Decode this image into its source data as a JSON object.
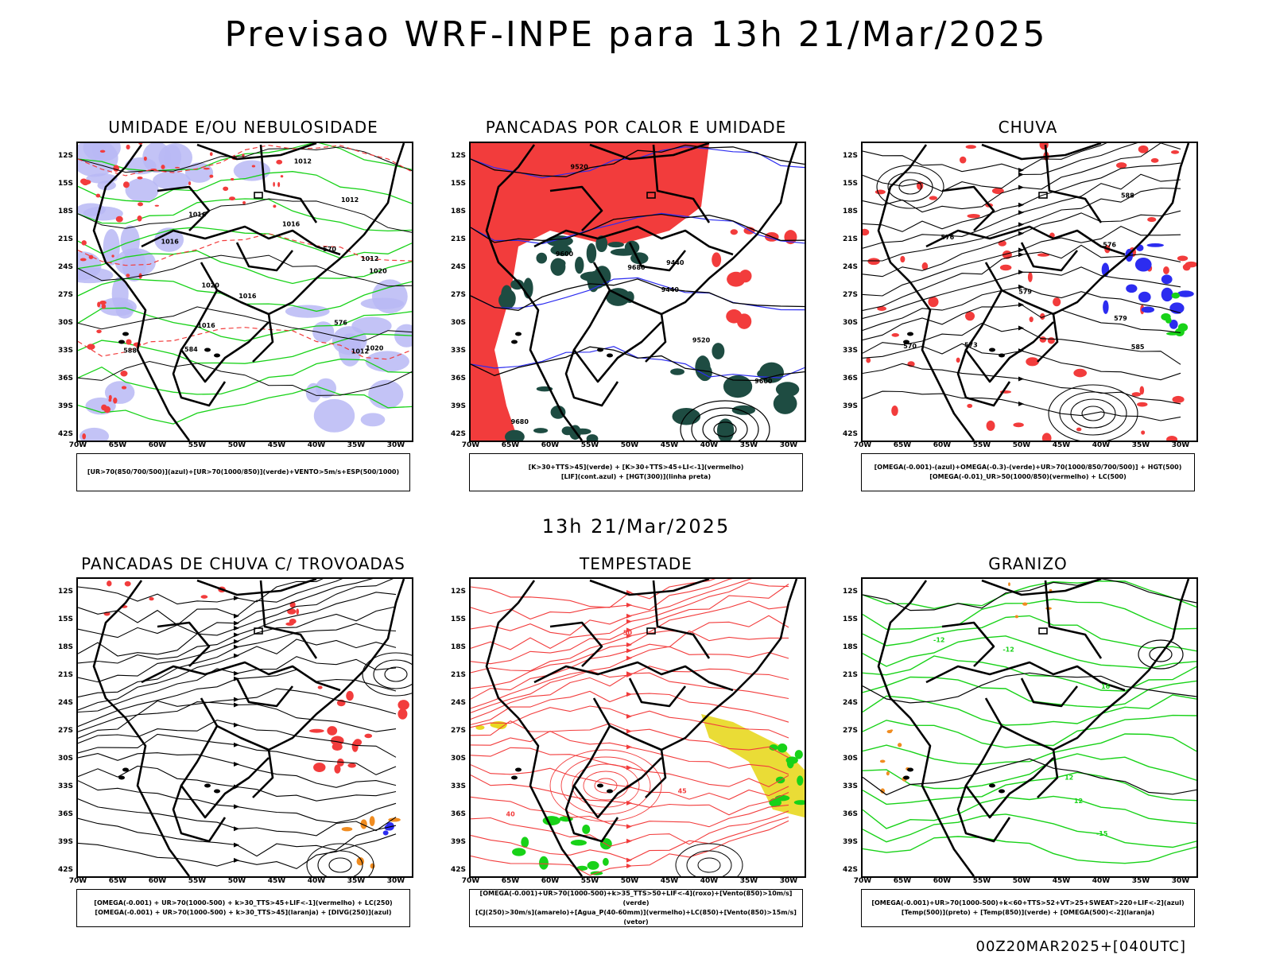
{
  "title": "Previsao WRF-INPE  para 13h 21/Mar/2025",
  "subtitle": "13h 21/Mar/2025",
  "footer": "00Z20MAR2025+[040UTC]",
  "lat_labels": [
    "12S",
    "15S",
    "18S",
    "21S",
    "24S",
    "27S",
    "30S",
    "33S",
    "36S",
    "39S",
    "42S"
  ],
  "lon_labels": [
    "70W",
    "65W",
    "60W",
    "55W",
    "50W",
    "45W",
    "40W",
    "35W",
    "30W"
  ],
  "colors": {
    "red": "#f23c3c",
    "green": "#18d218",
    "blue": "#2c2cf0",
    "lilac": "#b8b8f4",
    "darkgreen": "#1e4c42",
    "yellow": "#e8d820",
    "orange": "#f08c20",
    "purple": "#b020b0"
  },
  "panels": [
    {
      "id": "umidade",
      "title": "UMIDADE E/OU NEBULOSIDADE",
      "legend": [
        "[UR>70(850/700/500)](azul)+[UR>70(1000/850)](verde)+VENTO>5m/s+ESP(500/1000)"
      ],
      "contour_labels": [
        "1016",
        "1012",
        "1016",
        "1020",
        "1020",
        "1020",
        "1016",
        "1012",
        "1012",
        "1012",
        "1016",
        "576",
        "570",
        "584",
        "588",
        "1016"
      ]
    },
    {
      "id": "pancadas_calor",
      "title": "PANCADAS POR CALOR E UMIDADE",
      "legend": [
        "[K>30+TTS>45](verde) + [K>30+TTS>45+LI<-1](vermelho)",
        "[LIF](cont.azul) + [HGT(300)](linha preta)"
      ],
      "contour_labels": [
        "9680",
        "9600",
        "9520",
        "9600",
        "9520",
        "9440",
        "9440",
        "9680"
      ]
    },
    {
      "id": "chuva",
      "title": "CHUVA",
      "legend": [
        "[OMEGA(-0.001)-(azul)+OMEGA(-0.3)-(verde)+UR>70(1000/850/700/500)] + HGT(500)",
        "[OMEGA(-0.01)_UR>50(1000/850)(vermelho) + LC(500)"
      ],
      "contour_labels": [
        "585",
        "588",
        "576",
        "579",
        "576",
        "573",
        "570",
        "579"
      ]
    },
    {
      "id": "trovoadas",
      "title": "PANCADAS DE CHUVA C/ TROVOADAS",
      "legend": [
        "[OMEGA(-0.001) + UR>70(1000-500) + k>30_TTS>45+LIF<-1](vermelho) + LC(250)",
        "[OMEGA(-0.001) + UR>70(1000-500) + k>30_TTS>45](laranja) + [DIVG(250)](azul)"
      ],
      "contour_labels": []
    },
    {
      "id": "tempestade",
      "title": "TEMPESTADE",
      "legend": [
        "[OMEGA(-0.001)+UR>70(1000-500)+k>35_TTS>50+LIF<-4](roxo)+[Vento(850)>10m/s](verde)",
        "[CJ(250)>30m/s](amarelo)+[Agua_P(40-60mm)](vermelho)+LC(850)+[Vento(850)>15m/s](vetor)"
      ],
      "contour_labels": [
        "50",
        "45",
        "40"
      ]
    },
    {
      "id": "granizo",
      "title": "GRANIZO",
      "legend": [
        "[OMEGA(-0.001)+UR>70(1000-500)+k<60+TTS>52+VT>25+SWEAT>220+LIF<-2](azul)",
        "[Temp(500)](preto) + [Temp(850)](verde) + [OMEGA(500)<-2](laranja)"
      ],
      "contour_labels": [
        "-12",
        "-15",
        "16",
        "12",
        "-12",
        "12"
      ]
    }
  ]
}
